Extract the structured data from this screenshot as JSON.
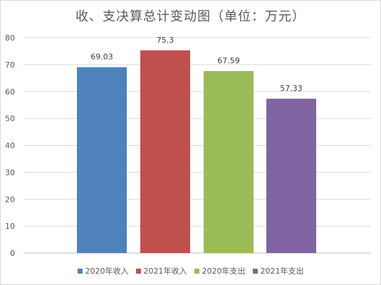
{
  "chart_data": {
    "type": "bar",
    "title": "收、支决算总计变动图（单位：万元）",
    "categories": [
      "2020年收入",
      "2021年收入",
      "2020年支出",
      "2021年支出"
    ],
    "values": [
      69.03,
      75.3,
      67.59,
      57.33
    ],
    "value_labels": [
      "69.03",
      "75.3",
      "67.59",
      "57.33"
    ],
    "colors": [
      "#4f81bd",
      "#c0504d",
      "#9bbb59",
      "#8064a2"
    ],
    "ylim": [
      0,
      80
    ],
    "yticks": [
      "0",
      "10",
      "20",
      "30",
      "40",
      "50",
      "60",
      "70",
      "80"
    ],
    "grid": true,
    "legend_position": "bottom"
  }
}
